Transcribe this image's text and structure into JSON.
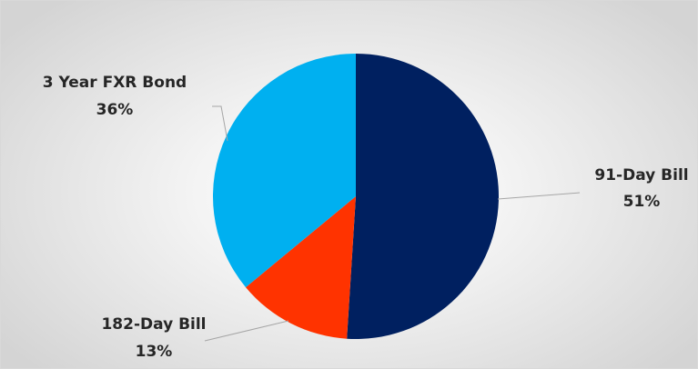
{
  "chart_data": {
    "type": "pie",
    "title": "",
    "slices": [
      {
        "label": "91-Day Bill",
        "value": 51,
        "value_label": "51%",
        "color": "#002060"
      },
      {
        "label": "182-Day Bill",
        "value": 13,
        "value_label": "13%",
        "color": "#FF3300"
      },
      {
        "label": "3 Year FXR Bond",
        "value": 36,
        "value_label": "36%",
        "color": "#00B0F0"
      }
    ],
    "start_angle_deg": 0,
    "direction": "clockwise",
    "legend": "none",
    "data_labels": "outside-with-leader-lines"
  }
}
